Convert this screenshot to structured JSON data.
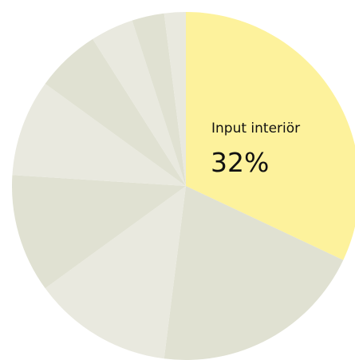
{
  "chart_data": {
    "type": "pie",
    "categories": [
      "Input interiör",
      null,
      null,
      null,
      null,
      null,
      null,
      null,
      null
    ],
    "values": [
      32,
      20,
      13,
      11,
      9,
      6,
      4,
      3,
      2
    ],
    "value_labels": [
      "32%",
      null,
      null,
      null,
      null,
      null,
      null,
      null,
      null
    ],
    "colors": [
      "#fdf29c",
      "#e0e1d2",
      "#e9e9df",
      "#e0e1d2",
      "#e9e9df",
      "#e0e1d2",
      "#e9e9df",
      "#e0e1d2",
      "#e9e9df"
    ]
  }
}
